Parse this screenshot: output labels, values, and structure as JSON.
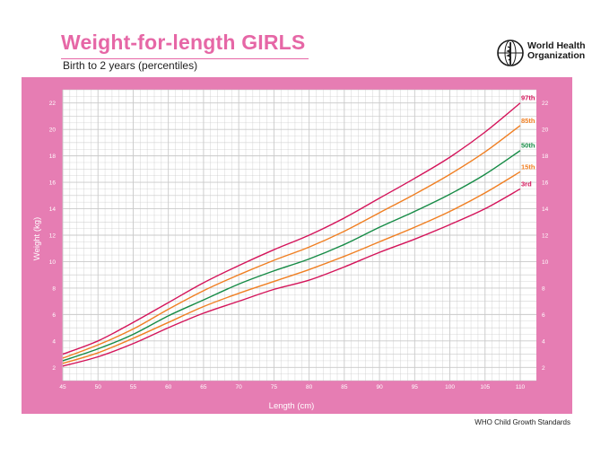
{
  "header": {
    "title": "Weight-for-length GIRLS",
    "subtitle": "Birth to 2 years (percentiles)",
    "org_line1": "World Health",
    "org_line2": "Organization"
  },
  "footer": {
    "text": "WHO Child Growth Standards"
  },
  "colors": {
    "brand_pink": "#e667a6",
    "panel_pink": "#e67db3",
    "grid": "#c9c9c9",
    "p97": "#d4145a",
    "p85": "#f07f22",
    "p50": "#168b46",
    "p15": "#f07f22",
    "p3": "#d4145a"
  },
  "chart_data": {
    "type": "line",
    "title": "Weight-for-length GIRLS",
    "subtitle": "Birth to 2 years (percentiles)",
    "xlabel": "Length (cm)",
    "ylabel": "Weight (kg)",
    "xlim": [
      45,
      110
    ],
    "ylim": [
      1,
      23
    ],
    "x_ticks": [
      45,
      50,
      55,
      60,
      65,
      70,
      75,
      80,
      85,
      90,
      95,
      100,
      105,
      110
    ],
    "y_ticks": [
      2,
      4,
      6,
      8,
      10,
      12,
      14,
      16,
      18,
      20,
      22
    ],
    "grid": true,
    "x": [
      45,
      50,
      55,
      60,
      65,
      70,
      75,
      80,
      85,
      90,
      95,
      100,
      105,
      110
    ],
    "series": [
      {
        "name": "97th",
        "color": "#d4145a",
        "values": [
          3.0,
          4.0,
          5.4,
          6.9,
          8.4,
          9.7,
          10.9,
          12.0,
          13.3,
          14.8,
          16.3,
          17.9,
          19.8,
          22.0
        ]
      },
      {
        "name": "85th",
        "color": "#f07f22",
        "values": [
          2.7,
          3.7,
          4.9,
          6.4,
          7.8,
          9.0,
          10.1,
          11.1,
          12.3,
          13.7,
          15.1,
          16.6,
          18.3,
          20.3
        ]
      },
      {
        "name": "50th",
        "color": "#168b46",
        "values": [
          2.5,
          3.4,
          4.5,
          5.9,
          7.1,
          8.3,
          9.3,
          10.2,
          11.3,
          12.6,
          13.8,
          15.1,
          16.6,
          18.4
        ]
      },
      {
        "name": "15th",
        "color": "#f07f22",
        "values": [
          2.3,
          3.1,
          4.2,
          5.4,
          6.6,
          7.6,
          8.5,
          9.4,
          10.4,
          11.5,
          12.6,
          13.8,
          15.2,
          16.8
        ]
      },
      {
        "name": "3rd",
        "color": "#d4145a",
        "values": [
          2.1,
          2.8,
          3.8,
          5.0,
          6.1,
          7.0,
          7.9,
          8.6,
          9.6,
          10.7,
          11.7,
          12.8,
          14.0,
          15.5
        ]
      }
    ]
  }
}
